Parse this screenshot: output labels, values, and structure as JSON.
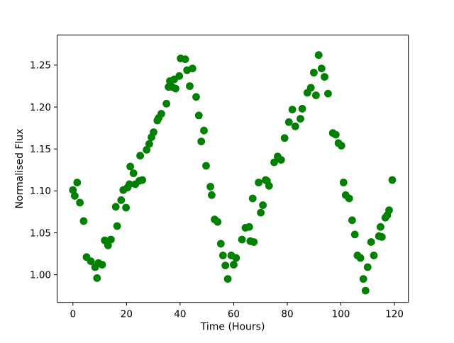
{
  "figure": {
    "background": "#ffffff",
    "frame_color": "#000000"
  },
  "chart_data": {
    "type": "scatter",
    "title": "",
    "xlabel": "Time (Hours)",
    "ylabel": "Normalised Flux",
    "legend": null,
    "grid": false,
    "marker": {
      "shape": "circle",
      "color": "#008000",
      "radius_px": 5.4
    },
    "xlim": [
      -5.9,
      125.2
    ],
    "ylim": [
      0.967,
      1.286
    ],
    "xticks": [
      0,
      20,
      40,
      60,
      80,
      100,
      120
    ],
    "yticks": [
      1.0,
      1.05,
      1.1,
      1.15,
      1.2,
      1.25
    ],
    "points": [
      [
        0.0,
        1.101
      ],
      [
        0.7,
        1.094
      ],
      [
        1.6,
        1.11
      ],
      [
        2.6,
        1.086
      ],
      [
        4.0,
        1.064
      ],
      [
        5.1,
        1.021
      ],
      [
        6.7,
        1.016
      ],
      [
        8.3,
        1.009
      ],
      [
        9.0,
        0.996
      ],
      [
        9.5,
        1.014
      ],
      [
        10.9,
        1.012
      ],
      [
        11.9,
        1.041
      ],
      [
        13.1,
        1.035
      ],
      [
        14.2,
        1.042
      ],
      [
        16.0,
        1.081
      ],
      [
        16.5,
        1.058
      ],
      [
        18.0,
        1.089
      ],
      [
        18.8,
        1.101
      ],
      [
        19.8,
        1.08
      ],
      [
        20.4,
        1.104
      ],
      [
        21.1,
        1.108
      ],
      [
        21.4,
        1.129
      ],
      [
        22.6,
        1.121
      ],
      [
        23.3,
        1.108
      ],
      [
        24.8,
        1.112
      ],
      [
        25.1,
        1.142
      ],
      [
        25.9,
        1.113
      ],
      [
        27.5,
        1.149
      ],
      [
        28.5,
        1.156
      ],
      [
        29.3,
        1.164
      ],
      [
        30.1,
        1.17
      ],
      [
        31.5,
        1.184
      ],
      [
        32.0,
        1.187
      ],
      [
        33.0,
        1.192
      ],
      [
        34.9,
        1.204
      ],
      [
        35.7,
        1.224
      ],
      [
        36.2,
        1.231
      ],
      [
        37.0,
        1.224
      ],
      [
        37.8,
        1.233
      ],
      [
        38.3,
        1.222
      ],
      [
        39.7,
        1.237
      ],
      [
        40.2,
        1.258
      ],
      [
        41.9,
        1.257
      ],
      [
        42.6,
        1.244
      ],
      [
        43.6,
        1.225
      ],
      [
        44.6,
        1.246
      ],
      [
        46.0,
        1.212
      ],
      [
        47.0,
        1.19
      ],
      [
        47.9,
        1.159
      ],
      [
        48.9,
        1.172
      ],
      [
        49.7,
        1.13
      ],
      [
        51.3,
        1.105
      ],
      [
        51.8,
        1.095
      ],
      [
        52.9,
        1.066
      ],
      [
        54.0,
        1.063
      ],
      [
        55.2,
        1.037
      ],
      [
        56.0,
        1.023
      ],
      [
        56.9,
        1.011
      ],
      [
        57.8,
        0.995
      ],
      [
        59.1,
        1.023
      ],
      [
        60.0,
        1.012
      ],
      [
        60.9,
        1.02
      ],
      [
        63.1,
        1.042
      ],
      [
        64.4,
        1.056
      ],
      [
        65.8,
        1.057
      ],
      [
        66.2,
        1.04
      ],
      [
        67.1,
        1.091
      ],
      [
        67.5,
        1.039
      ],
      [
        69.3,
        1.11
      ],
      [
        70.1,
        1.074
      ],
      [
        70.9,
        1.083
      ],
      [
        71.9,
        1.113
      ],
      [
        72.4,
        1.112
      ],
      [
        73.2,
        1.106
      ],
      [
        75.1,
        1.134
      ],
      [
        76.4,
        1.141
      ],
      [
        77.7,
        1.137
      ],
      [
        79.0,
        1.163
      ],
      [
        80.6,
        1.182
      ],
      [
        81.9,
        1.197
      ],
      [
        83.0,
        1.177
      ],
      [
        84.9,
        1.186
      ],
      [
        85.6,
        1.198
      ],
      [
        87.5,
        1.217
      ],
      [
        88.8,
        1.223
      ],
      [
        89.9,
        1.241
      ],
      [
        90.7,
        1.214
      ],
      [
        91.7,
        1.262
      ],
      [
        92.8,
        1.246
      ],
      [
        93.9,
        1.236
      ],
      [
        95.2,
        1.216
      ],
      [
        97.0,
        1.169
      ],
      [
        98.1,
        1.167
      ],
      [
        99.1,
        1.157
      ],
      [
        100.2,
        1.154
      ],
      [
        101.0,
        1.11
      ],
      [
        101.8,
        1.095
      ],
      [
        103.1,
        1.091
      ],
      [
        104.2,
        1.065
      ],
      [
        105.2,
        1.048
      ],
      [
        106.2,
        1.023
      ],
      [
        107.3,
        1.02
      ],
      [
        108.4,
        0.995
      ],
      [
        109.2,
        0.981
      ],
      [
        110.0,
        1.009
      ],
      [
        111.3,
        1.039
      ],
      [
        112.3,
        1.023
      ],
      [
        114.2,
        1.046
      ],
      [
        114.8,
        1.057
      ],
      [
        115.3,
        1.045
      ],
      [
        116.6,
        1.068
      ],
      [
        117.3,
        1.071
      ],
      [
        118.0,
        1.077
      ],
      [
        119.2,
        1.113
      ]
    ]
  }
}
